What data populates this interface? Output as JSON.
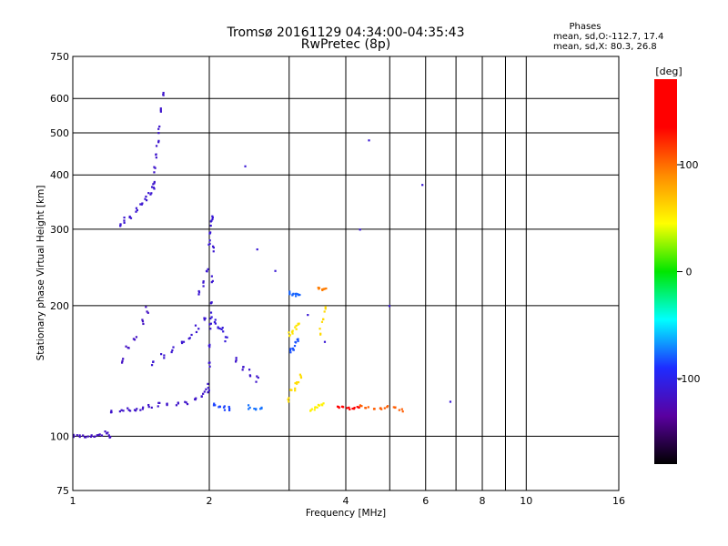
{
  "chart_data": {
    "type": "scatter",
    "title": "Tromsø 20161129 04:34:00-04:35:43",
    "subtitle": "RwPretec (8p)",
    "xlabel": "Frequency [MHz]",
    "ylabel": "Stationary phase Virtual Height [km]",
    "x_scale": "log",
    "y_scale": "log",
    "xlim": [
      1,
      16
    ],
    "ylim": [
      75,
      750
    ],
    "x_ticks": [
      1,
      2,
      4,
      6,
      8,
      10,
      16
    ],
    "x_minor": [
      3,
      5,
      7,
      9
    ],
    "y_ticks": [
      75,
      100,
      200,
      300,
      400,
      500,
      600,
      750
    ],
    "grid": true,
    "phases_header": "Phases",
    "stats": [
      "mean, sd,O:-112.7, 17.4",
      "mean, sd,X:  80.3, 26.8"
    ],
    "colorbar": {
      "label": "[deg]",
      "range": [
        -180,
        180
      ],
      "ticks": [
        100,
        0,
        -100
      ],
      "stops": [
        "#000000",
        "#5a00a0",
        "#1e2cff",
        "#00ffff",
        "#00e600",
        "#ffff00",
        "#ff8c00",
        "#ff0000",
        "#ff0000"
      ]
    },
    "series": [
      {
        "traces": [
          {
            "x": [
              1.0,
              1.03,
              1.06,
              1.09,
              1.12,
              1.15,
              1.18,
              1.2
            ],
            "y": [
              100,
              100,
              100,
              100,
              100,
              101,
              102,
              100
            ],
            "phase": -118,
            "jx": 0.012,
            "jy": 0.008
          },
          {
            "x": [
              1.27,
              1.3,
              1.34,
              1.38,
              1.42,
              1.45,
              1.48,
              1.5
            ],
            "y": [
              309,
              315,
              323,
              332,
              342,
              352,
              362,
              372
            ],
            "phase": -112,
            "jx": 0.008,
            "jy": 0.015
          },
          {
            "x": [
              1.51,
              1.52,
              1.53,
              1.54,
              1.55,
              1.56,
              1.58
            ],
            "y": [
              380,
              410,
              440,
              470,
              510,
              560,
              620
            ],
            "phase": -114,
            "jx": 0.007,
            "jy": 0.02
          },
          {
            "x": [
              1.22,
              1.28,
              1.33,
              1.38,
              1.42,
              1.48,
              1.55,
              1.62,
              1.7,
              1.78,
              1.86,
              1.92,
              1.97
            ],
            "y": [
              114,
              114,
              115,
              116,
              116,
              117,
              118,
              118,
              119,
              120,
              122,
              124,
              127
            ],
            "phase": -115,
            "jx": 0.01,
            "jy": 0.012
          },
          {
            "x": [
              1.99,
              2.0,
              2.0,
              2.01,
              2.02,
              2.03,
              2.04
            ],
            "y": [
              130,
              145,
              160,
              180,
              200,
              230,
              270
            ],
            "phase": -112,
            "jx": 0.004,
            "jy": 0.02
          },
          {
            "x": [
              2.0,
              2.01,
              2.02,
              2.03
            ],
            "y": [
              280,
              295,
              310,
              320
            ],
            "phase": -110,
            "jx": 0.004,
            "jy": 0.015
          },
          {
            "x": [
              1.5,
              1.58,
              1.66,
              1.74,
              1.82,
              1.88,
              1.94
            ],
            "y": [
              148,
              152,
              158,
              164,
              170,
              177,
              185
            ],
            "phase": -112,
            "jx": 0.01,
            "jy": 0.018
          },
          {
            "x": [
              1.28,
              1.32,
              1.37,
              1.42,
              1.46
            ],
            "y": [
              150,
              160,
              170,
              182,
              196
            ],
            "phase": -118,
            "jx": 0.008,
            "jy": 0.02
          },
          {
            "x": [
              2.02,
              2.06,
              2.1,
              2.14,
              2.18
            ],
            "y": [
              190,
              185,
              180,
              175,
              168
            ],
            "phase": -108,
            "jx": 0.006,
            "jy": 0.02
          },
          {
            "x": [
              2.3,
              2.38,
              2.45,
              2.55
            ],
            "y": [
              150,
              145,
              140,
              135
            ],
            "phase": -114,
            "jx": 0.006,
            "jy": 0.02
          },
          {
            "x": [
              1.9,
              1.94,
              1.98
            ],
            "y": [
              215,
              225,
              240
            ],
            "phase": -112,
            "jx": 0.006,
            "jy": 0.015
          },
          {
            "x": [
              2.05,
              2.1,
              2.15,
              2.22
            ],
            "y": [
              118,
              117,
              116,
              116
            ],
            "phase": -85,
            "jx": 0.006,
            "jy": 0.012
          },
          {
            "x": [
              2.45,
              2.52,
              2.6
            ],
            "y": [
              117,
              116,
              116
            ],
            "phase": -75,
            "jx": 0.006,
            "jy": 0.012
          },
          {
            "x": [
              3.0,
              3.05,
              3.1,
              3.15
            ],
            "y": [
              214,
              213,
              212,
              213
            ],
            "phase": -78,
            "jx": 0.005,
            "jy": 0.008
          },
          {
            "x": [
              3.02,
              3.06,
              3.1,
              3.14
            ],
            "y": [
              158,
              160,
              163,
              166
            ],
            "phase": -82,
            "jx": 0.005,
            "jy": 0.012
          },
          {
            "x": [
              3.0,
              3.05,
              3.1,
              3.15
            ],
            "y": [
              172,
              175,
              178,
              180
            ],
            "phase": 55,
            "jx": 0.005,
            "jy": 0.015
          },
          {
            "x": [
              2.98,
              3.03,
              3.08,
              3.13,
              3.18
            ],
            "y": [
              122,
              126,
              130,
              134,
              138
            ],
            "phase": 58,
            "jx": 0.006,
            "jy": 0.02
          },
          {
            "x": [
              3.35,
              3.42,
              3.48,
              3.55
            ],
            "y": [
              115,
              116,
              117,
              118
            ],
            "phase": 50,
            "jx": 0.006,
            "jy": 0.01
          },
          {
            "x": [
              3.5,
              3.55,
              3.6
            ],
            "y": [
              175,
              185,
              195
            ],
            "phase": 60,
            "jx": 0.005,
            "jy": 0.02
          },
          {
            "x": [
              3.48,
              3.55,
              3.6
            ],
            "y": [
              219,
              218,
              218
            ],
            "phase": 95,
            "jx": 0.006,
            "jy": 0.006
          },
          {
            "x": [
              3.85,
              3.95,
              4.05,
              4.15,
              4.25
            ],
            "y": [
              117,
              117,
              116,
              116,
              117
            ],
            "phase": 160,
            "jx": 0.008,
            "jy": 0.006
          },
          {
            "x": [
              4.3,
              4.45,
              4.6,
              4.75,
              4.9,
              5.1,
              5.3
            ],
            "y": [
              117,
              117,
              116,
              116,
              117,
              116,
              115
            ],
            "phase": 105,
            "jx": 0.01,
            "jy": 0.008
          },
          {
            "x": [
              2.4,
              2.55,
              2.8,
              3.3,
              3.6,
              4.3,
              4.5,
              5.0,
              5.9,
              6.8
            ],
            "y": [
              420,
              270,
              240,
              190,
              165,
              300,
              480,
              200,
              380,
              120
            ],
            "phase": -110,
            "jx": 0.002,
            "jy": 0.003
          }
        ]
      }
    ]
  }
}
